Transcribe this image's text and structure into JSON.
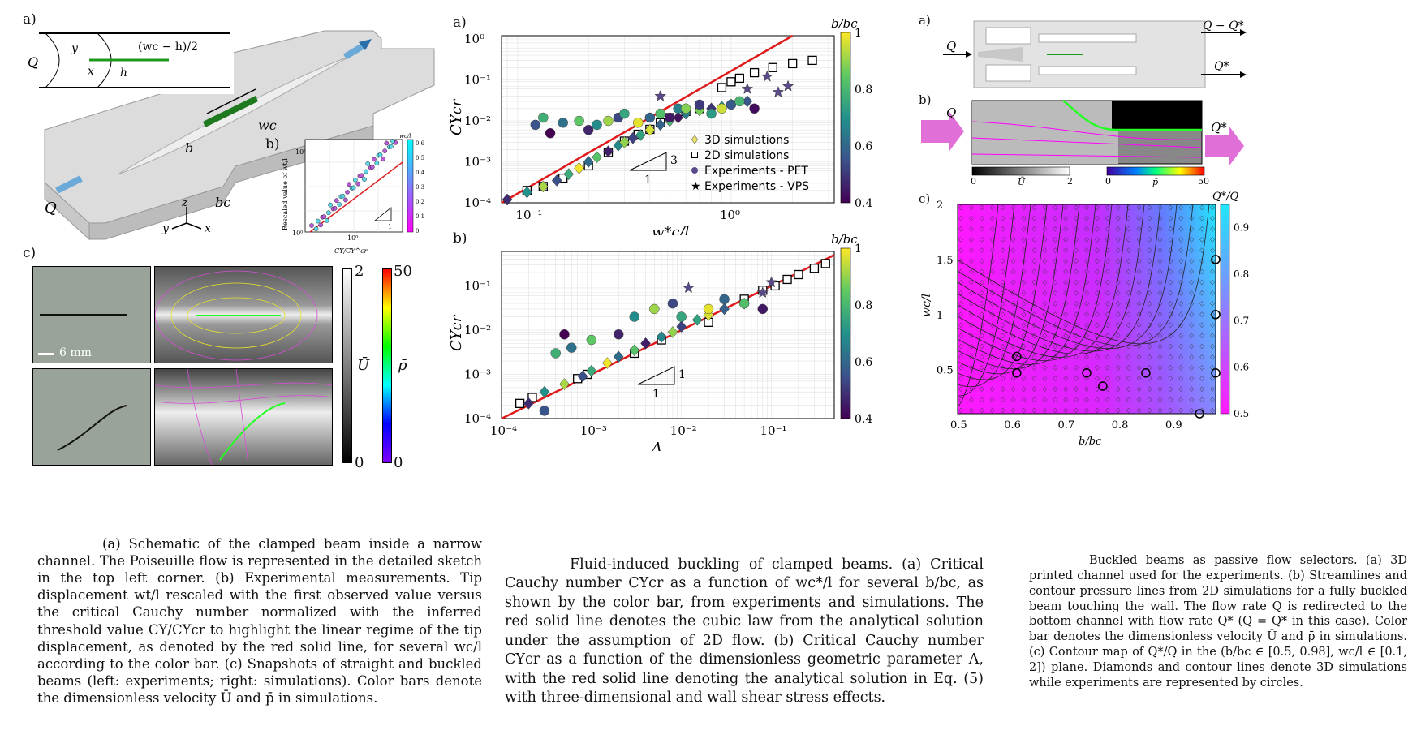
{
  "left": {
    "panel_a_label": "a)",
    "panel_b_label": "b)",
    "panel_c_label": "c)",
    "schematic": {
      "Q_in": "Q",
      "Q_top": "Q",
      "y": "y",
      "x": "x",
      "h": "h",
      "gap": "(wc − h)/2",
      "l": "l",
      "wc": "wc",
      "b": "b",
      "bc": "bc",
      "axis_z": "z",
      "axis_y": "y",
      "axis_x": "x"
    },
    "inset": {
      "ylabel": "Rescaled value of wt/l",
      "xlabel": "CY/CY^cr",
      "cbar_title": "wc/l",
      "cbar_ticks": [
        "0.6",
        "0.5",
        "0.4",
        "0.3",
        "0.2",
        "0.1",
        "0"
      ],
      "ytick_top": "10¹",
      "ytick_bottom": "10⁰",
      "xtick": "10⁰",
      "slope": "1"
    },
    "snapshots": {
      "scale_bar": "6 mm",
      "U_label": "Ū",
      "U_max": "2",
      "U_min": "0",
      "p_label": "p̄",
      "p_max": "50",
      "p_min": "0"
    },
    "caption": "(a) Schematic of the clamped beam inside a narrow channel. The Poiseuille flow is represented in the detailed sketch in the top left corner. (b) Experimental measurements. Tip displacement wt/l rescaled with the first observed value versus the critical Cauchy number normalized with the inferred threshold value CY/CYcr to highlight the linear regime of the tip displacement, as denoted by the red solid line, for several wc/l according to the color bar. (c) Snapshots of straight and buckled beams (left: experiments; right: simulations). Color bars denote the dimensionless velocity Ū and p̄ in simulations."
  },
  "middle": {
    "panel_a_label": "a)",
    "panel_b_label": "b)",
    "caption": "Fluid-induced buckling of clamped beams. (a) Critical Cauchy number CYcr as a function of wc*/l for several b/bc, as shown by the color bar, from experiments and simulations. The red solid line denotes the cubic law from the analytical solution under the assumption of 2D flow. (b) Critical Cauchy number CYcr as a function of the dimensionless geometric parameter Λ, with the red solid line denoting the analytical solution in Eq. (5) with three-dimensional and wall shear stress effects."
  },
  "right": {
    "panel_a_label": "a)",
    "panel_b_label": "b)",
    "panel_c_label": "c)",
    "channel": {
      "Q_in": "Q",
      "Q_top": "Q − Q*",
      "Q_bottom": "Q*"
    },
    "flow": {
      "Q_in": "Q",
      "Q_out": "Q*",
      "U_label": "Ū",
      "U_min": "0",
      "U_max": "2",
      "p_label": "p̄",
      "p_min": "0",
      "p_max": "50"
    },
    "caption": "Buckled beams as passive flow selectors. (a) 3D printed channel used for the experiments. (b) Streamlines and contour pressure lines from 2D simulations for a fully buckled beam touching the wall. The flow rate Q is redirected to the bottom channel with flow rate Q* (Q = Q* in this case). Color bar denotes the dimensionless velocity Ū and p̄ in simulations. (c) Contour map of Q*/Q in the (b/bc ∈ [0.5, 0.98], wc/l ∈ [0.1, 2]) plane. Diamonds and contour lines denote 3D simulations while experiments are represented by circles."
  },
  "chart_data": [
    {
      "type": "scatter",
      "id": "mid-a",
      "xlabel": "w*c/l",
      "ylabel": "CYcr",
      "xscale": "log",
      "yscale": "log",
      "xlim": [
        0.075,
        3.2
      ],
      "ylim": [
        0.0001,
        1.2
      ],
      "xticks": [
        [
          "0.1",
          "10⁻¹"
        ],
        [
          "1",
          "10⁰"
        ]
      ],
      "yticks": [
        [
          "0.0001",
          "10⁻⁴"
        ],
        [
          "0.001",
          "10⁻³"
        ],
        [
          "0.01",
          "10⁻²"
        ],
        [
          "0.1",
          "10⁻¹"
        ],
        [
          "1",
          "10⁰"
        ]
      ],
      "colorbar": {
        "title": "b/bc",
        "ticks": [
          "1",
          "0.8",
          "0.6",
          "0.4"
        ],
        "range": [
          0.4,
          1
        ]
      },
      "legend": [
        "3D simulations",
        "2D simulations",
        "Experiments - PET",
        "Experiments - VPS"
      ],
      "legend_position": "right",
      "slope_label": "3",
      "slope_base": "1",
      "fit_line": {
        "slope": 3,
        "x": [
          0.075,
          3.2
        ]
      },
      "series": [
        {
          "name": "2D simulations",
          "marker": "square",
          "points": [
            [
              0.1,
              0.0002
            ],
            [
              0.12,
              0.00025
            ],
            [
              0.15,
              0.0004
            ],
            [
              0.2,
              0.0008
            ],
            [
              0.25,
              0.0017
            ],
            [
              0.3,
              0.0032
            ],
            [
              0.35,
              0.0047
            ],
            [
              0.4,
              0.0062
            ],
            [
              0.45,
              0.009
            ],
            [
              0.5,
              0.012
            ],
            [
              0.6,
              0.017
            ],
            [
              0.7,
              0.02
            ],
            [
              0.9,
              0.065
            ],
            [
              1.0,
              0.09
            ],
            [
              1.1,
              0.11
            ],
            [
              1.3,
              0.15
            ],
            [
              1.6,
              0.2
            ],
            [
              2.0,
              0.25
            ],
            [
              2.5,
              0.3
            ]
          ]
        },
        {
          "name": "3D simulations",
          "marker": "diamond",
          "points": [
            [
              0.08,
              0.00012
            ],
            [
              0.1,
              0.00018
            ],
            [
              0.12,
              0.00025
            ],
            [
              0.14,
              0.00035
            ],
            [
              0.16,
              0.0005
            ],
            [
              0.18,
              0.0007
            ],
            [
              0.2,
              0.001
            ],
            [
              0.22,
              0.0013
            ],
            [
              0.25,
              0.0018
            ],
            [
              0.28,
              0.0025
            ],
            [
              0.3,
              0.003
            ],
            [
              0.33,
              0.0038
            ],
            [
              0.36,
              0.0045
            ],
            [
              0.4,
              0.006
            ],
            [
              0.45,
              0.008
            ],
            [
              0.5,
              0.01
            ],
            [
              0.55,
              0.012
            ],
            [
              0.6,
              0.015
            ],
            [
              0.7,
              0.018
            ],
            [
              0.8,
              0.02
            ],
            [
              0.9,
              0.022
            ],
            [
              1.0,
              0.025
            ],
            [
              1.2,
              0.03
            ]
          ]
        },
        {
          "name": "Experiments - PET",
          "marker": "circle",
          "points": [
            [
              0.11,
              0.008
            ],
            [
              0.12,
              0.012
            ],
            [
              0.13,
              0.005
            ],
            [
              0.15,
              0.009
            ],
            [
              0.18,
              0.01
            ],
            [
              0.2,
              0.006
            ],
            [
              0.22,
              0.008
            ],
            [
              0.25,
              0.01
            ],
            [
              0.28,
              0.012
            ],
            [
              0.3,
              0.015
            ],
            [
              0.35,
              0.009
            ],
            [
              0.4,
              0.012
            ],
            [
              0.45,
              0.015
            ],
            [
              0.5,
              0.012
            ],
            [
              0.55,
              0.02
            ],
            [
              0.6,
              0.02
            ],
            [
              0.7,
              0.025
            ],
            [
              0.8,
              0.015
            ],
            [
              0.9,
              0.02
            ],
            [
              1.0,
              0.025
            ],
            [
              1.1,
              0.03
            ],
            [
              1.3,
              0.02
            ]
          ]
        },
        {
          "name": "Experiments - VPS",
          "marker": "star",
          "points": [
            [
              0.45,
              0.04
            ],
            [
              1.2,
              0.06
            ],
            [
              1.5,
              0.12
            ],
            [
              1.7,
              0.05
            ],
            [
              1.9,
              0.07
            ]
          ]
        }
      ]
    },
    {
      "type": "scatter",
      "id": "mid-b",
      "xlabel": "Λ",
      "ylabel": "CYcr",
      "xscale": "log",
      "yscale": "log",
      "xlim": [
        0.0001,
        0.5
      ],
      "ylim": [
        0.0001,
        0.6
      ],
      "xticks": [
        [
          "0.0001",
          "10⁻⁴"
        ],
        [
          "0.001",
          "10⁻³"
        ],
        [
          "0.01",
          "10⁻²"
        ],
        [
          "0.1",
          "10⁻¹"
        ]
      ],
      "yticks": [
        [
          "0.0001",
          "10⁻⁴"
        ],
        [
          "0.001",
          "10⁻³"
        ],
        [
          "0.01",
          "10⁻²"
        ],
        [
          "0.1",
          "10⁻¹"
        ]
      ],
      "colorbar": {
        "title": "b/bc",
        "ticks": [
          "1",
          "0.8",
          "0.6",
          "0.4"
        ],
        "range": [
          0.4,
          1
        ]
      },
      "slope_label": "1",
      "slope_base": "1",
      "fit_line": {
        "slope": 1,
        "x": [
          0.0001,
          0.5
        ]
      },
      "series": [
        {
          "name": "2D simulations",
          "marker": "square",
          "points": [
            [
              0.00016,
              0.00022
            ],
            [
              0.00022,
              0.0003
            ],
            [
              0.0007,
              0.0008
            ],
            [
              0.0009,
              0.001
            ],
            [
              0.003,
              0.003
            ],
            [
              0.006,
              0.006
            ],
            [
              0.02,
              0.015
            ],
            [
              0.05,
              0.05
            ],
            [
              0.08,
              0.08
            ],
            [
              0.11,
              0.1
            ],
            [
              0.15,
              0.14
            ],
            [
              0.2,
              0.18
            ],
            [
              0.3,
              0.25
            ],
            [
              0.4,
              0.32
            ]
          ]
        },
        {
          "name": "3D simulations",
          "marker": "diamond",
          "points": [
            [
              0.0002,
              0.00022
            ],
            [
              0.0003,
              0.0004
            ],
            [
              0.0005,
              0.0006
            ],
            [
              0.0008,
              0.0009
            ],
            [
              0.001,
              0.0012
            ],
            [
              0.0015,
              0.0018
            ],
            [
              0.002,
              0.0025
            ],
            [
              0.003,
              0.0035
            ],
            [
              0.004,
              0.005
            ],
            [
              0.006,
              0.007
            ],
            [
              0.008,
              0.009
            ],
            [
              0.01,
              0.012
            ],
            [
              0.015,
              0.017
            ],
            [
              0.02,
              0.022
            ],
            [
              0.03,
              0.03
            ],
            [
              0.05,
              0.04
            ]
          ]
        },
        {
          "name": "Experiments - PET",
          "marker": "circle",
          "points": [
            [
              0.0003,
              0.00015
            ],
            [
              0.0004,
              0.003
            ],
            [
              0.0005,
              0.008
            ],
            [
              0.0006,
              0.004
            ],
            [
              0.001,
              0.006
            ],
            [
              0.002,
              0.008
            ],
            [
              0.003,
              0.02
            ],
            [
              0.005,
              0.03
            ],
            [
              0.008,
              0.04
            ],
            [
              0.01,
              0.02
            ],
            [
              0.02,
              0.03
            ],
            [
              0.03,
              0.05
            ],
            [
              0.05,
              0.04
            ],
            [
              0.08,
              0.03
            ]
          ]
        },
        {
          "name": "Experiments - VPS",
          "marker": "star",
          "points": [
            [
              0.012,
              0.09
            ],
            [
              0.1,
              0.12
            ],
            [
              0.08,
              0.07
            ]
          ]
        }
      ]
    },
    {
      "type": "heatmap",
      "id": "right-c",
      "xlabel": "b/bc",
      "ylabel": "wc/l",
      "xlim": [
        0.5,
        0.98
      ],
      "ylim": [
        0.1,
        2
      ],
      "xticks": [
        "0.5",
        "0.6",
        "0.7",
        "0.8",
        "0.9"
      ],
      "yticks": [
        "0.5",
        "1",
        "1.5",
        "2"
      ],
      "colorbar": {
        "title": "Q*/Q",
        "ticks": [
          "0.9",
          "0.8",
          "0.7",
          "0.6",
          "0.5"
        ],
        "range": [
          0.5,
          0.95
        ]
      },
      "experiments": [
        [
          0.61,
          0.62
        ],
        [
          0.61,
          0.47
        ],
        [
          0.74,
          0.47
        ],
        [
          0.77,
          0.35
        ],
        [
          0.85,
          0.47
        ],
        [
          0.95,
          0.1
        ],
        [
          0.98,
          0.47
        ],
        [
          0.98,
          1.0
        ],
        [
          0.98,
          1.5
        ]
      ]
    }
  ]
}
